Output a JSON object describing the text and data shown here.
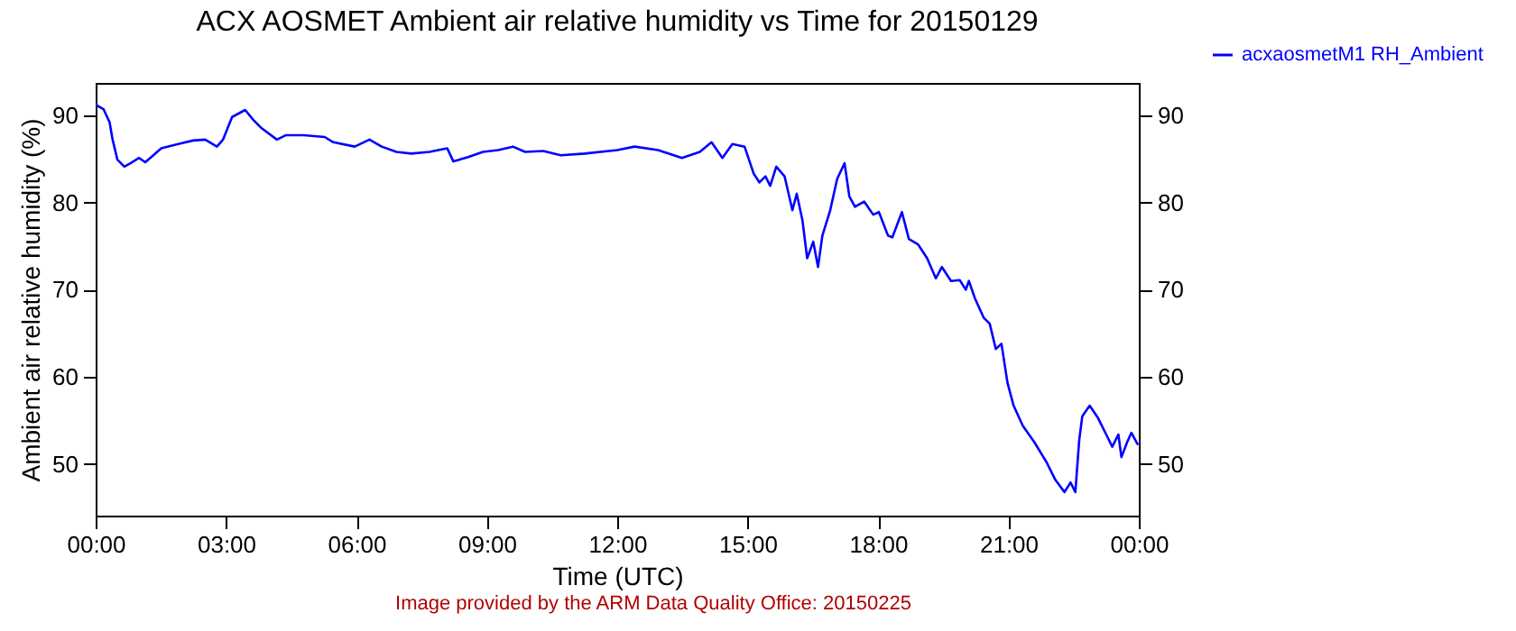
{
  "chart_data": {
    "type": "line",
    "title": "ACX AOSMET Ambient air relative humidity vs Time for 20150129",
    "xlabel": "Time (UTC)",
    "ylabel": "Ambient air relative humidity (%)",
    "annotations": [
      "Image provided by the ARM Data Quality Office: 20150225"
    ],
    "x": [
      0,
      0.18,
      0.32,
      0.39,
      0.5,
      0.66,
      0.8,
      1.0,
      1.14,
      1.28,
      1.51,
      1.9,
      2.24,
      2.52,
      2.79,
      2.93,
      3.14,
      3.44,
      3.62,
      3.82,
      4.17,
      4.37,
      4.79,
      5.27,
      5.47,
      5.96,
      6.3,
      6.58,
      6.92,
      7.26,
      7.68,
      8.09,
      8.23,
      8.57,
      8.91,
      9.26,
      9.6,
      9.88,
      10.3,
      10.7,
      11.25,
      12.0,
      12.4,
      12.94,
      13.49,
      13.9,
      14.17,
      14.42,
      14.65,
      14.93,
      15.14,
      15.27,
      15.41,
      15.52,
      15.66,
      15.85,
      16.03,
      16.13,
      16.26,
      16.37,
      16.51,
      16.62,
      16.72,
      16.9,
      17.06,
      17.23,
      17.34,
      17.47,
      17.68,
      17.89,
      18.02,
      18.23,
      18.33,
      18.55,
      18.71,
      18.92,
      19.13,
      19.33,
      19.47,
      19.68,
      19.88,
      20.02,
      20.09,
      20.23,
      20.43,
      20.57,
      20.71,
      20.84,
      20.98,
      21.12,
      21.33,
      21.6,
      21.88,
      22.08,
      22.29,
      22.43,
      22.54,
      22.63,
      22.7,
      22.87,
      23.05,
      23.25,
      23.39,
      23.53,
      23.6,
      23.73,
      23.83,
      23.97
    ],
    "series": [
      {
        "name": "acxaosmetM1 RH_Ambient",
        "color": "#0000ff",
        "values": [
          91.2,
          90.7,
          89.2,
          87.2,
          84.9,
          84.1,
          84.5,
          85.1,
          84.6,
          85.2,
          86.2,
          86.7,
          87.1,
          87.2,
          86.4,
          87.2,
          89.8,
          90.6,
          89.5,
          88.5,
          87.2,
          87.7,
          87.7,
          87.5,
          86.9,
          86.4,
          87.2,
          86.4,
          85.8,
          85.6,
          85.8,
          86.2,
          84.7,
          85.2,
          85.8,
          86.0,
          86.4,
          85.8,
          85.9,
          85.4,
          85.6,
          86.0,
          86.4,
          86.0,
          85.1,
          85.8,
          86.9,
          85.1,
          86.7,
          86.4,
          83.3,
          82.3,
          83.0,
          81.9,
          84.1,
          83.0,
          79.1,
          81.0,
          78.0,
          73.6,
          75.5,
          72.6,
          76.2,
          79.1,
          82.7,
          84.5,
          80.7,
          79.5,
          80.1,
          78.6,
          78.9,
          76.2,
          76.0,
          78.9,
          75.8,
          75.2,
          73.6,
          71.3,
          72.6,
          71.0,
          71.1,
          70.0,
          71.0,
          69.0,
          66.8,
          66.1,
          63.2,
          63.8,
          59.3,
          56.7,
          54.4,
          52.5,
          50.2,
          48.2,
          46.8,
          47.9,
          46.8,
          52.8,
          55.5,
          56.7,
          55.4,
          53.4,
          52.0,
          53.4,
          50.8,
          52.5,
          53.6,
          52.3
        ]
      }
    ],
    "xlim": [
      0,
      24
    ],
    "xticks": [
      {
        "value": 0,
        "label": "00:00"
      },
      {
        "value": 3,
        "label": "03:00"
      },
      {
        "value": 6,
        "label": "06:00"
      },
      {
        "value": 9,
        "label": "09:00"
      },
      {
        "value": 12,
        "label": "12:00"
      },
      {
        "value": 15,
        "label": "15:00"
      },
      {
        "value": 18,
        "label": "18:00"
      },
      {
        "value": 21,
        "label": "21:00"
      },
      {
        "value": 24,
        "label": "00:00"
      }
    ],
    "ylim": [
      44.1,
      93.7
    ],
    "yticks": [
      50,
      60,
      70,
      80,
      90
    ],
    "y2lim": [
      44.1,
      93.7
    ],
    "y2ticks": [
      50,
      60,
      70,
      80,
      90
    ],
    "legend": "top right",
    "grid": false
  }
}
